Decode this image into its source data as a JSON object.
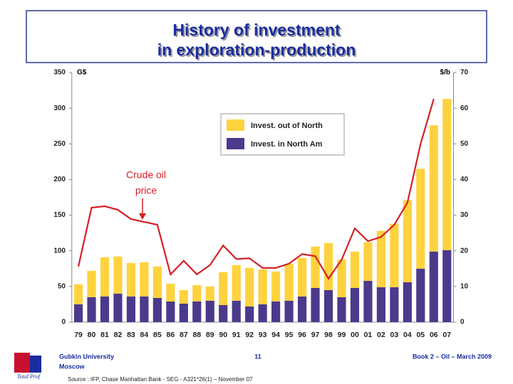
{
  "chart_data": {
    "type": "bar",
    "stacked": true,
    "title": [
      "History of investment",
      "in exploration-production"
    ],
    "y_label": "G$",
    "y2_label": "$/b",
    "categories": [
      "79",
      "80",
      "81",
      "82",
      "83",
      "84",
      "85",
      "86",
      "87",
      "88",
      "89",
      "90",
      "91",
      "92",
      "93",
      "94",
      "95",
      "96",
      "97",
      "98",
      "99",
      "00",
      "01",
      "02",
      "03",
      "04",
      "05",
      "06",
      "07"
    ],
    "series": [
      {
        "name": "Invest. in North Am",
        "color": "#4b3a8c",
        "values": [
          25,
          35,
          36,
          40,
          36,
          36,
          34,
          29,
          26,
          29,
          30,
          24,
          30,
          22,
          25,
          29,
          30,
          36,
          48,
          45,
          35,
          48,
          58,
          49,
          49,
          56,
          75,
          99,
          101
        ]
      },
      {
        "name": "Invest. out of North",
        "color": "#ffd23f",
        "values": [
          28,
          37,
          55,
          52,
          47,
          48,
          44,
          25,
          19,
          23,
          20,
          46,
          50,
          54,
          49,
          42,
          52,
          54,
          58,
          66,
          53,
          51,
          54,
          79,
          89,
          115,
          140,
          177,
          212
        ]
      },
      {
        "type": "line",
        "axis": "y2",
        "color": "#d42027",
        "values": [
          15.6,
          32.1,
          32.5,
          31.5,
          28.9,
          28.1,
          27.3,
          13.4,
          17.2,
          13.4,
          16,
          21.5,
          17.7,
          17.9,
          15.2,
          15.2,
          16.4,
          19.1,
          18.5,
          12.2,
          17.5,
          26.3,
          22.7,
          23.9,
          27.3,
          33.5,
          50,
          62.6,
          null
        ]
      }
    ],
    "annotation": [
      "Crude oil",
      "price"
    ],
    "ylim": [
      0,
      350
    ],
    "yticks": [
      0,
      50,
      100,
      150,
      200,
      250,
      300,
      350
    ],
    "y2lim": [
      0,
      70
    ],
    "y2ticks": [
      0,
      10,
      20,
      30,
      40,
      50,
      60,
      70
    ],
    "legend": "upper center"
  },
  "footer": {
    "org": [
      "Gubkin University",
      "Moscow"
    ],
    "page": "11",
    "book": "Book 2 – Oil – March 2009",
    "source": "Source : IFP, Chase Manhattan Bank  - SEG - A321*26(1) – November 07",
    "logo": "Total Prof"
  }
}
